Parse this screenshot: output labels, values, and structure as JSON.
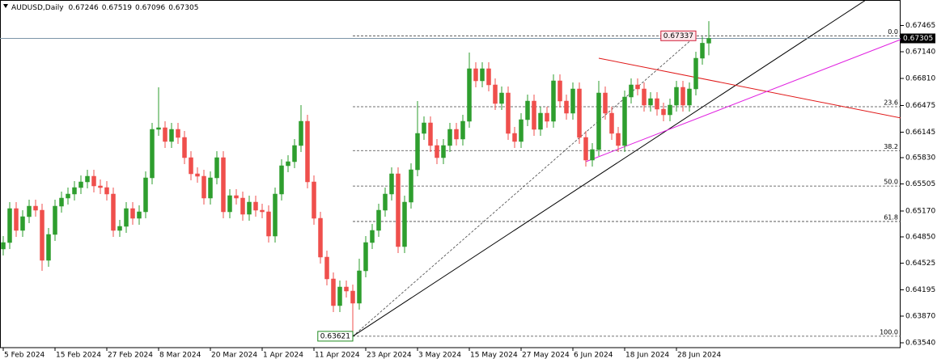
{
  "chart_data": {
    "type": "candlestick",
    "symbol": "AUDUSD,Daily",
    "categories": [
      "5 Feb 2024",
      null,
      null,
      null,
      null,
      null,
      null,
      null,
      "15 Feb 2024",
      null,
      null,
      null,
      null,
      null,
      null,
      null,
      "27 Feb 2024",
      null,
      null,
      null,
      null,
      null,
      null,
      null,
      "8 Mar 2024",
      null,
      null,
      null,
      null,
      null,
      null,
      null,
      "20 Mar 2024",
      null,
      null,
      null,
      null,
      null,
      null,
      null,
      "1 Apr 2024",
      null,
      null,
      null,
      null,
      null,
      null,
      null,
      "11 Apr 2024",
      null,
      null,
      null,
      null,
      null,
      null,
      null,
      "23 Apr 2024",
      null,
      null,
      null,
      null,
      null,
      null,
      null,
      "3 May 2024",
      null,
      null,
      null,
      null,
      null,
      null,
      null,
      "15 May 2024",
      null,
      null,
      null,
      null,
      null,
      null,
      null,
      "27 May 2024",
      null,
      null,
      null,
      null,
      null,
      null,
      null,
      "6 Jun 2024",
      null,
      null,
      null,
      null,
      null,
      null,
      null,
      "18 Jun 2024",
      null,
      null,
      null,
      null,
      null,
      null,
      null,
      "28 Jun 2024",
      null,
      null,
      null,
      null,
      null
    ],
    "open": [
      0.647,
      0.6478,
      0.652,
      0.6493,
      0.651,
      0.6523,
      0.6518,
      0.6456,
      0.6488,
      0.6523,
      0.6533,
      0.6538,
      0.6546,
      0.6553,
      0.656,
      0.6548,
      0.6546,
      0.6538,
      0.6493,
      0.6498,
      0.652,
      0.6508,
      0.6516,
      0.6558,
      0.6618,
      0.662,
      0.6603,
      0.6618,
      0.6608,
      0.6583,
      0.6563,
      0.656,
      0.6533,
      0.6558,
      0.6583,
      0.6516,
      0.6536,
      0.6533,
      0.6513,
      0.6528,
      0.6518,
      0.6516,
      0.6486,
      0.6538,
      0.6573,
      0.6578,
      0.6598,
      0.6628,
      0.6553,
      0.6508,
      0.646,
      0.6433,
      0.64,
      0.6423,
      0.6418,
      0.6403,
      0.6443,
      0.6478,
      0.6493,
      0.6518,
      0.6538,
      0.6563,
      0.6473,
      0.6528,
      0.6568,
      0.6613,
      0.6626,
      0.6598,
      0.6583,
      0.6598,
      0.6618,
      0.6606,
      0.6628,
      0.6693,
      0.6678,
      0.6693,
      0.6673,
      0.665,
      0.6663,
      0.6613,
      0.6603,
      0.663,
      0.6653,
      0.6618,
      0.6638,
      0.6628,
      0.6678,
      0.6653,
      0.6638,
      0.6668,
      0.6608,
      0.658,
      0.6593,
      0.6663,
      0.6638,
      0.6613,
      0.6598,
      0.6658,
      0.6673,
      0.6668,
      0.6648,
      0.6656,
      0.6643,
      0.6636,
      0.6648,
      0.667,
      0.6648,
      0.6668,
      0.6706,
      0.67246
    ],
    "high": [
      0.6486,
      0.6528,
      0.6528,
      0.6518,
      0.6531,
      0.6531,
      0.6526,
      0.6496,
      0.6531,
      0.6541,
      0.6546,
      0.6554,
      0.6561,
      0.6568,
      0.6568,
      0.6556,
      0.6554,
      0.6546,
      0.6506,
      0.6528,
      0.6528,
      0.6524,
      0.6566,
      0.6626,
      0.667,
      0.6628,
      0.6626,
      0.6626,
      0.6616,
      0.6591,
      0.6571,
      0.6568,
      0.6566,
      0.6591,
      0.6591,
      0.6544,
      0.6544,
      0.6541,
      0.6536,
      0.6536,
      0.6526,
      0.6524,
      0.6546,
      0.6581,
      0.6586,
      0.6606,
      0.6648,
      0.6636,
      0.6561,
      0.6516,
      0.6468,
      0.6441,
      0.6431,
      0.6431,
      0.6426,
      0.6458,
      0.6486,
      0.6501,
      0.6526,
      0.6546,
      0.6571,
      0.6571,
      0.6536,
      0.6576,
      0.6653,
      0.6634,
      0.6634,
      0.6606,
      0.6606,
      0.6626,
      0.6626,
      0.6636,
      0.6713,
      0.6701,
      0.6701,
      0.6701,
      0.6681,
      0.6671,
      0.6671,
      0.6621,
      0.6638,
      0.6661,
      0.6661,
      0.6646,
      0.6646,
      0.6686,
      0.6686,
      0.6661,
      0.6676,
      0.6676,
      0.6616,
      0.6601,
      0.6678,
      0.6671,
      0.6646,
      0.6621,
      0.6666,
      0.6681,
      0.6681,
      0.6676,
      0.6664,
      0.6664,
      0.6651,
      0.6656,
      0.6678,
      0.6678,
      0.6676,
      0.6714,
      0.67326,
      0.67519
    ],
    "low": [
      0.6462,
      0.647,
      0.6485,
      0.6485,
      0.6502,
      0.651,
      0.6443,
      0.6448,
      0.648,
      0.6515,
      0.6525,
      0.653,
      0.6538,
      0.6545,
      0.654,
      0.6538,
      0.653,
      0.6485,
      0.6485,
      0.649,
      0.65,
      0.65,
      0.6508,
      0.655,
      0.661,
      0.6595,
      0.6595,
      0.66,
      0.6575,
      0.6555,
      0.6552,
      0.6525,
      0.6525,
      0.655,
      0.6508,
      0.6508,
      0.6525,
      0.6505,
      0.6505,
      0.651,
      0.6508,
      0.6478,
      0.6478,
      0.653,
      0.6565,
      0.657,
      0.659,
      0.6545,
      0.65,
      0.6452,
      0.6425,
      0.6392,
      0.6392,
      0.641,
      0.63621,
      0.6395,
      0.6435,
      0.647,
      0.6485,
      0.651,
      0.653,
      0.6465,
      0.6465,
      0.652,
      0.656,
      0.6605,
      0.659,
      0.6575,
      0.6575,
      0.659,
      0.6598,
      0.6598,
      0.662,
      0.667,
      0.667,
      0.6665,
      0.6642,
      0.6642,
      0.6605,
      0.6595,
      0.6595,
      0.6622,
      0.661,
      0.661,
      0.662,
      0.662,
      0.6645,
      0.663,
      0.663,
      0.66,
      0.6572,
      0.6572,
      0.6585,
      0.663,
      0.6605,
      0.659,
      0.659,
      0.665,
      0.666,
      0.664,
      0.664,
      0.6635,
      0.6628,
      0.6628,
      0.664,
      0.664,
      0.664,
      0.666,
      0.6698,
      0.67096
    ],
    "close": [
      0.6478,
      0.652,
      0.6493,
      0.651,
      0.6523,
      0.6518,
      0.6456,
      0.6488,
      0.6523,
      0.6533,
      0.6538,
      0.6546,
      0.6553,
      0.656,
      0.6548,
      0.6546,
      0.6538,
      0.6493,
      0.6498,
      0.652,
      0.6508,
      0.6516,
      0.6558,
      0.6618,
      0.662,
      0.6603,
      0.6618,
      0.6608,
      0.6583,
      0.6563,
      0.656,
      0.6533,
      0.6558,
      0.6583,
      0.6516,
      0.6536,
      0.6533,
      0.6513,
      0.6528,
      0.6518,
      0.6516,
      0.6486,
      0.6538,
      0.6573,
      0.6578,
      0.6598,
      0.6628,
      0.6553,
      0.6508,
      0.646,
      0.6433,
      0.64,
      0.6423,
      0.6418,
      0.6403,
      0.6443,
      0.6478,
      0.6493,
      0.6518,
      0.6538,
      0.6563,
      0.6473,
      0.6528,
      0.6568,
      0.6613,
      0.6626,
      0.6598,
      0.6583,
      0.6598,
      0.6618,
      0.6606,
      0.6628,
      0.6693,
      0.6678,
      0.6693,
      0.6673,
      0.665,
      0.6663,
      0.6613,
      0.6603,
      0.663,
      0.6653,
      0.6618,
      0.6638,
      0.6628,
      0.6678,
      0.6653,
      0.6638,
      0.6668,
      0.6608,
      0.658,
      0.6593,
      0.6663,
      0.6638,
      0.6613,
      0.6598,
      0.6658,
      0.6673,
      0.6668,
      0.6648,
      0.6656,
      0.6643,
      0.6636,
      0.6648,
      0.667,
      0.6648,
      0.6668,
      0.6706,
      0.67246,
      0.67305
    ],
    "up_color": "#2e9e2e",
    "down_color": "#ef4f4c",
    "price_line_color": "#7d95a8",
    "ylim": [
      0.6348,
      0.6778
    ],
    "yticks": [
      0.67465,
      {
        "value": 0.6714,
        "label": "0.67140"
      },
      {
        "value": 0.6681,
        "label": "0.66810"
      },
      0.66475,
      0.66145,
      {
        "value": 0.6583,
        "label": "0.65830"
      },
      0.65505,
      {
        "value": 0.6517,
        "label": "0.65170"
      },
      {
        "value": 0.6485,
        "label": "0.64850"
      },
      0.64525,
      0.64195,
      {
        "value": 0.6387,
        "label": "0.63870"
      },
      {
        "value": 0.6354,
        "label": "0.63540"
      }
    ],
    "fib": {
      "high": 0.67337,
      "low": 0.63621,
      "high_index": 107,
      "low_index": 54,
      "high_color": "#d0203a",
      "low_color": "#1e8a1e",
      "levels": [
        {
          "value": 0,
          "label": "0.0"
        },
        23.6,
        38.2,
        {
          "value": 50,
          "label": "50.0"
        },
        61.8,
        {
          "value": 100,
          "label": "100.0"
        }
      ]
    },
    "lines": [
      {
        "color": "#000000",
        "points": [
          [
            54,
            0.63621
          ],
          [
            104,
            0.66245
          ]
        ],
        "ray": true
      },
      {
        "color": "#e01818",
        "points": [
          [
            92,
            0.6706
          ],
          [
            104,
            0.6687
          ]
        ],
        "ray": true
      },
      {
        "color": "#e020e0",
        "points": [
          [
            90,
            0.6578
          ],
          [
            104,
            0.66215
          ]
        ],
        "ray": true
      }
    ]
  }
}
